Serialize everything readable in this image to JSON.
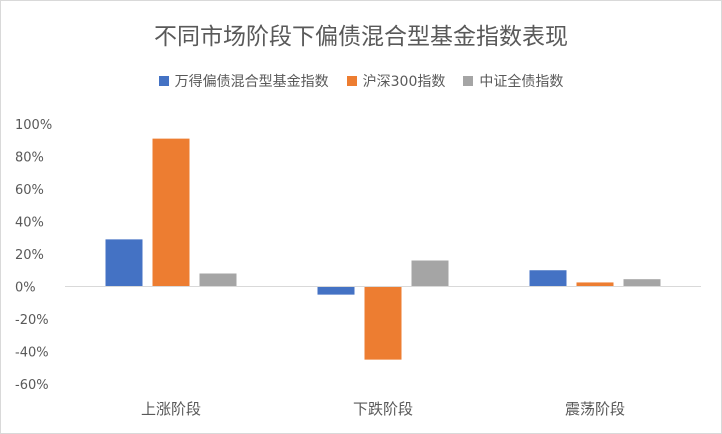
{
  "chart_data": {
    "type": "bar",
    "title": "不同市场阶段下偏债混合型基金指数表现",
    "categories": [
      "上涨阶段",
      "下跌阶段",
      "震荡阶段"
    ],
    "series": [
      {
        "name": "万得偏债混合型基金指数",
        "color": "#4472c4",
        "values": [
          29,
          -5,
          10
        ]
      },
      {
        "name": "沪深300指数",
        "color": "#ed7d31",
        "values": [
          91,
          -45,
          2.5
        ]
      },
      {
        "name": "中证全债指数",
        "color": "#a5a5a5",
        "values": [
          8,
          16,
          4.5
        ]
      }
    ],
    "y_ticks": [
      "100%",
      "80%",
      "60%",
      "40%",
      "20%",
      "0%",
      "-20%",
      "-40%",
      "-60%"
    ],
    "ylim": [
      -60,
      100
    ],
    "legend_position": "top",
    "grid": false
  }
}
